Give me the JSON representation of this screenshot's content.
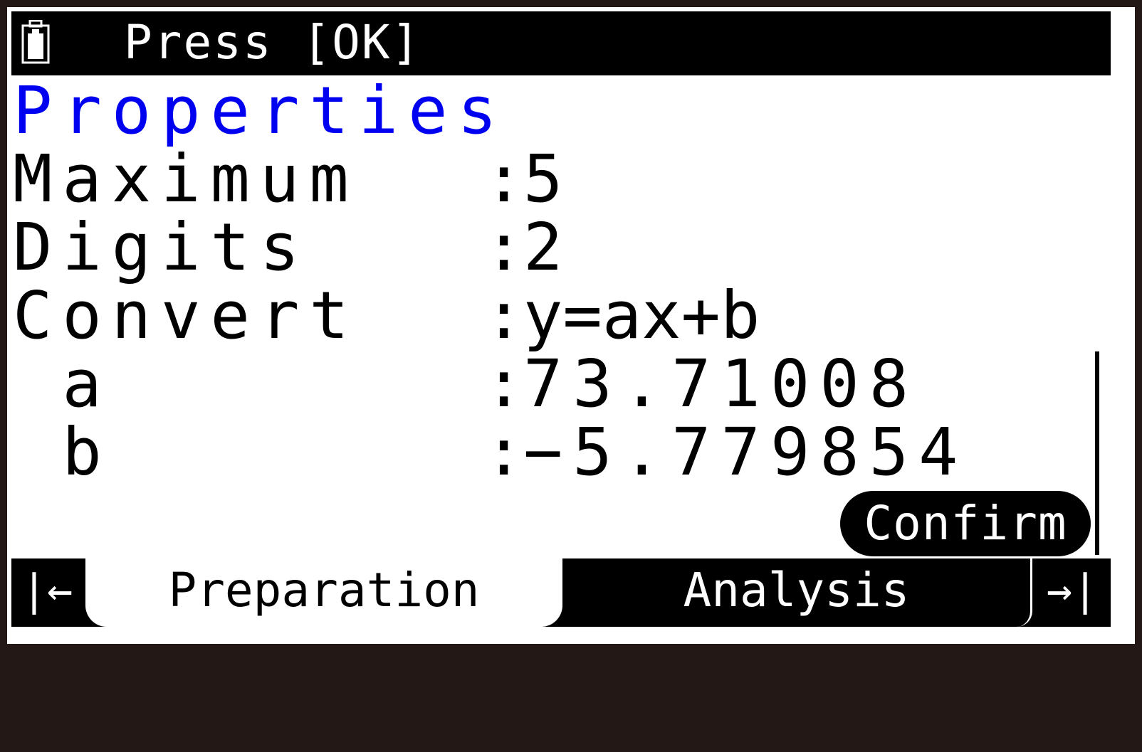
{
  "status_bar": {
    "battery_icon": "battery-full-icon",
    "message": "Press [OK]"
  },
  "title": "Properties",
  "properties": [
    {
      "label": "Maximum",
      "value": "5"
    },
    {
      "label": "Digits",
      "value": "2"
    },
    {
      "label": "Convert",
      "value": "y=ax+b"
    },
    {
      "label": " a",
      "value": "73.71008"
    },
    {
      "label": " b",
      "value": "−5.779854"
    }
  ],
  "separator": ":",
  "confirm_label": "Confirm",
  "tabs": {
    "prev_icon": "|←",
    "next_icon": "→|",
    "items": [
      {
        "label": "Preparation",
        "active": true
      },
      {
        "label": "Analysis",
        "active": false
      }
    ]
  },
  "colors": {
    "title": "#0000f0",
    "frame": "#231815"
  }
}
